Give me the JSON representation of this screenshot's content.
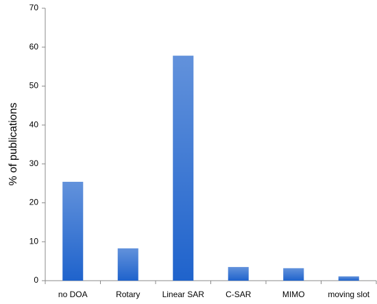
{
  "chart_data": {
    "type": "bar",
    "y_label": "% of publications",
    "categories": [
      "no DOA",
      "Rotary",
      "Linear SAR",
      "C-SAR",
      "MIMO",
      "moving slot"
    ],
    "values": [
      25.4,
      8.3,
      57.8,
      3.5,
      3.2,
      1.1
    ],
    "color": "#1f63cc",
    "ylim": [
      0,
      70
    ],
    "yticks": [
      0,
      10,
      20,
      30,
      40,
      50,
      60,
      70
    ],
    "grid": false
  }
}
